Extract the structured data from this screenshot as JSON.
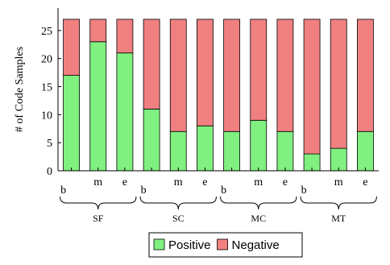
{
  "chart_data": {
    "type": "bar",
    "stacked": true,
    "ylabel": "# of Code Samples",
    "xlabel": "",
    "ylim": [
      0,
      29
    ],
    "yticks": [
      0,
      5,
      10,
      15,
      20,
      25
    ],
    "categories": [
      "b",
      "m",
      "e",
      "b",
      "m",
      "e",
      "b",
      "m",
      "e",
      "b",
      "m",
      "e"
    ],
    "groups": [
      {
        "label": "SF",
        "start": 0,
        "end": 2
      },
      {
        "label": "SC",
        "start": 3,
        "end": 5
      },
      {
        "label": "MC",
        "start": 6,
        "end": 8
      },
      {
        "label": "MT",
        "start": 9,
        "end": 11
      }
    ],
    "series": [
      {
        "name": "Positive",
        "color": "#80f080",
        "values": [
          17,
          23,
          21,
          11,
          7,
          8,
          7,
          9,
          7,
          3,
          4,
          7
        ]
      },
      {
        "name": "Negative",
        "color": "#f08080",
        "values": [
          10,
          4,
          6,
          16,
          20,
          19,
          20,
          18,
          20,
          24,
          23,
          20
        ]
      }
    ],
    "grid": false,
    "legend_position": "bottom"
  }
}
